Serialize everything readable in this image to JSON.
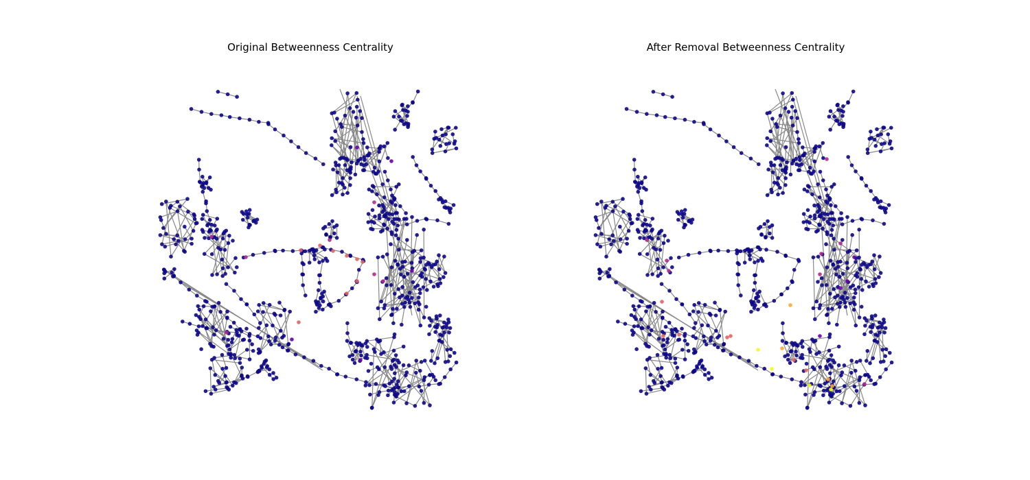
{
  "panels": [
    {
      "title": "Original Betweenness Centrality"
    },
    {
      "title": "After Removal Betweenness Centrality"
    }
  ],
  "colors": {
    "low": "#0d0887",
    "mid_low": "#6a00a8",
    "mid": "#b12a90",
    "mid_high": "#e16462",
    "high": "#fca636",
    "max": "#f0f921",
    "edge": "#888888"
  }
}
